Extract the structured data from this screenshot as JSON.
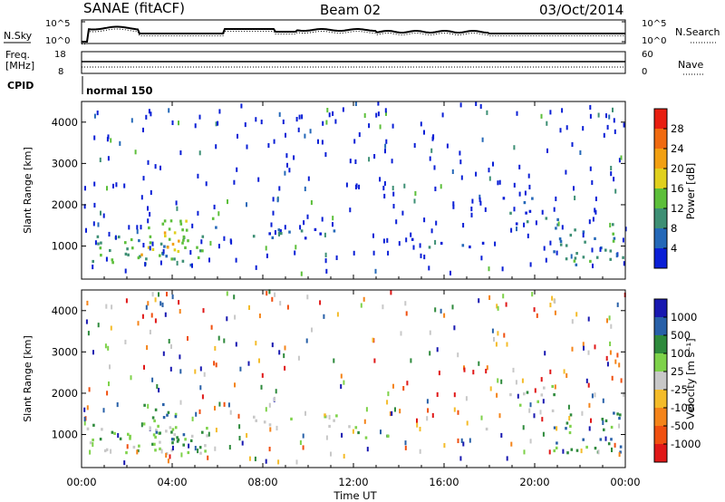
{
  "header": {
    "radar": "SANAE (fitACF)",
    "beam": "Beam 02",
    "date": "03/Oct/2014"
  },
  "params_panel": {
    "nsky_label": "N.Sky",
    "nsky_ticks": [
      "10^5",
      "10^0"
    ],
    "nsearch_label": "N.Search",
    "nsearch_ticks": [
      "10^5",
      "10^0"
    ],
    "freq_label": "Freq.",
    "freq_unit": "[MHz]",
    "freq_ticks": [
      "18",
      "8"
    ],
    "nave_label": "Nave",
    "nave_ticks": [
      "60",
      "0"
    ],
    "cpid_label": "CPID",
    "cpid_value": "normal 150"
  },
  "colors": {
    "power_scale": [
      "#0a1fd6",
      "#2468b8",
      "#3d8f74",
      "#5cbf3a",
      "#e0d01e",
      "#f2a012",
      "#f06a10",
      "#e81e10"
    ],
    "velocity_scale": [
      "#e01818",
      "#f05010",
      "#f4841a",
      "#f4bc2a",
      "#c8c8c8",
      "#7ed24a",
      "#2e8a3c",
      "#2860a8",
      "#1818b0"
    ]
  },
  "chart_data": [
    {
      "type": "heatmap",
      "name": "power",
      "ylabel": "Slant Range [km]",
      "y_ticks": [
        "1000",
        "2000",
        "3000",
        "4000"
      ],
      "ylim": [
        200,
        4500
      ],
      "xlim_hours": [
        0,
        24
      ],
      "colorbar_title": "Power [dB]",
      "colorbar_ticks": [
        "4",
        "8",
        "12",
        "16",
        "20",
        "24",
        "28"
      ],
      "colorbar_range": [
        0,
        32
      ],
      "patches": [
        {
          "t0": 0.2,
          "t1": 5.5,
          "r0": 500,
          "r1": 1200,
          "mean": 11,
          "density": 0.7
        },
        {
          "t0": 2.6,
          "t1": 4.6,
          "r0": 700,
          "r1": 1700,
          "mean": 17,
          "density": 0.75
        },
        {
          "t0": 5.7,
          "t1": 6.2,
          "r0": 1400,
          "r1": 1700,
          "mean": 10,
          "density": 0.6
        },
        {
          "t0": 7.5,
          "t1": 11.8,
          "r0": 1150,
          "r1": 1450,
          "mean": 6,
          "density": 0.55
        },
        {
          "t0": 12,
          "t1": 19,
          "r0": 850,
          "r1": 1150,
          "mean": 4,
          "density": 0.18
        },
        {
          "t0": 18.5,
          "t1": 21,
          "r0": 1500,
          "r1": 2200,
          "mean": 5,
          "density": 0.35
        },
        {
          "t0": 20.8,
          "t1": 24,
          "r0": 500,
          "r1": 1500,
          "mean": 9,
          "density": 0.55
        }
      ]
    },
    {
      "type": "heatmap",
      "name": "velocity",
      "ylabel": "Slant Range [km]",
      "y_ticks": [
        "1000",
        "2000",
        "3000",
        "4000"
      ],
      "ylim": [
        200,
        4500
      ],
      "xlim_hours": [
        0,
        24
      ],
      "xlabel": "Time UT",
      "x_ticks": [
        "00:00",
        "04:00",
        "08:00",
        "12:00",
        "16:00",
        "20:00",
        "00:00"
      ],
      "colorbar_title": "Velocity [m s⁻¹]",
      "colorbar_ticks": [
        "1000",
        "500",
        "100",
        "25",
        "-25",
        "-100",
        "-500",
        "-1000"
      ],
      "patches": [
        {
          "t0": 0.2,
          "t1": 5.5,
          "r0": 500,
          "r1": 1200,
          "mean": 1,
          "density": 0.7
        },
        {
          "t0": 2.6,
          "t1": 4.6,
          "r0": 700,
          "r1": 1700,
          "mean": 2,
          "density": 0.75
        },
        {
          "t0": 7.5,
          "t1": 11.8,
          "r0": 1150,
          "r1": 1450,
          "mean": 0,
          "density": 0.55
        },
        {
          "t0": 12,
          "t1": 19,
          "r0": 850,
          "r1": 1150,
          "mean": 1,
          "density": 0.18
        },
        {
          "t0": 18.5,
          "t1": 21,
          "r0": 1500,
          "r1": 2200,
          "mean": 1,
          "density": 0.35
        },
        {
          "t0": 20.8,
          "t1": 24,
          "r0": 500,
          "r1": 1500,
          "mean": 2,
          "density": 0.55
        }
      ]
    }
  ]
}
